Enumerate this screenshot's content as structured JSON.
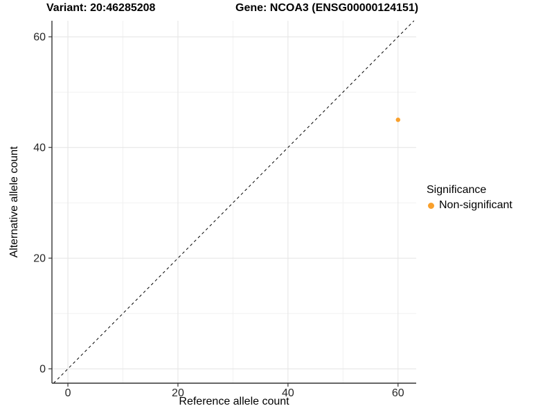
{
  "chart_data": {
    "type": "scatter",
    "title_left": "Variant: 20:46285208",
    "title_right": "Gene: NCOA3 (ENSG00000124151)",
    "xlabel": "Reference allele count",
    "ylabel": "Alternative allele count",
    "xlim": [
      -2.9,
      63.3
    ],
    "ylim": [
      -2.6,
      62.9
    ],
    "xticks": [
      0,
      20,
      40,
      60
    ],
    "yticks": [
      0,
      20,
      40,
      60
    ],
    "xticks_minor": [
      10,
      30,
      50
    ],
    "yticks_minor": [
      10,
      30,
      50
    ],
    "grid": "on",
    "identity_line": {
      "type": "y=x",
      "style": "dashed",
      "color": "#000000"
    },
    "series": [
      {
        "name": "Non-significant",
        "color": "#F9A02C",
        "points": [
          {
            "x": 60,
            "y": 45
          }
        ]
      }
    ],
    "legend": {
      "position": "right",
      "title": "Significance",
      "items": [
        {
          "label": "Non-significant",
          "color": "#F9A02C"
        }
      ]
    },
    "colors": {
      "background": "#ffffff",
      "axis": "#333333",
      "grid_major": "#e4e4e4",
      "grid_minor": "#f1f1f1",
      "tick_text": "#262626",
      "text": "#000000"
    }
  }
}
